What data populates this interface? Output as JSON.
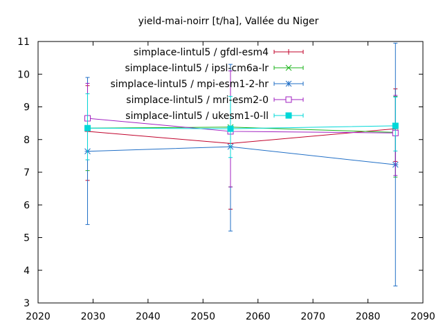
{
  "chart_data": {
    "type": "line",
    "title": "yield-mai-noirr [t/ha], Vallée du Niger",
    "xlabel": "",
    "ylabel": "",
    "xlim": [
      2020,
      2090
    ],
    "ylim": [
      3,
      11
    ],
    "xticks": [
      2020,
      2030,
      2040,
      2050,
      2060,
      2070,
      2080,
      2090
    ],
    "yticks": [
      3,
      4,
      5,
      6,
      7,
      8,
      9,
      10,
      11
    ],
    "grid": false,
    "legend_position": "top-right",
    "series": [
      {
        "name": "simplace-lintul5 / gfdl-esm4",
        "color": "#c0002a",
        "marker": "plus",
        "x": [
          2029,
          2055,
          2085
        ],
        "y": [
          8.25,
          7.88,
          8.33
        ],
        "err_low": [
          6.75,
          5.87,
          7.33
        ],
        "err_high": [
          9.65,
          10.1,
          9.55
        ]
      },
      {
        "name": "simplace-lintul5 / ipsl-cm6a-lr",
        "color": "#1ab31a",
        "marker": "cross",
        "x": [
          2029,
          2055,
          2085
        ],
        "y": [
          8.35,
          8.38,
          8.22
        ],
        "err_low": [
          7.05,
          6.55,
          6.85
        ],
        "err_high": [
          9.72,
          10.1,
          9.32
        ]
      },
      {
        "name": "simplace-lintul5 / mpi-esm1-2-hr",
        "color": "#1f6ec6",
        "marker": "star",
        "x": [
          2029,
          2055,
          2085
        ],
        "y": [
          7.64,
          7.78,
          7.23
        ],
        "err_low": [
          5.4,
          5.2,
          3.52
        ],
        "err_high": [
          9.9,
          10.3,
          10.95
        ]
      },
      {
        "name": "simplace-lintul5 / mri-esm2-0",
        "color": "#a020c0",
        "marker": "square-open",
        "x": [
          2029,
          2055,
          2085
        ],
        "y": [
          8.65,
          8.25,
          8.2
        ],
        "err_low": [
          7.38,
          6.55,
          6.9
        ],
        "err_high": [
          9.72,
          10.1,
          9.35
        ]
      },
      {
        "name": "simplace-lintul5 / ukesm1-0-ll",
        "color": "#00d8d8",
        "marker": "square-filled",
        "x": [
          2029,
          2055,
          2085
        ],
        "y": [
          8.35,
          8.33,
          8.42
        ],
        "err_low": [
          7.38,
          7.45,
          7.65
        ],
        "err_high": [
          9.4,
          9.32,
          9.3
        ]
      }
    ]
  }
}
